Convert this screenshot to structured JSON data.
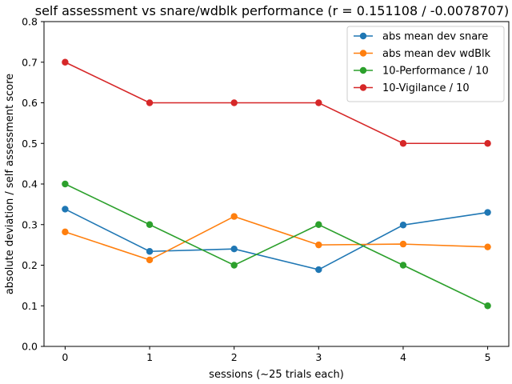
{
  "chart_data": {
    "type": "line",
    "title": "self assessment vs snare/wdblk performance (r = 0.151108 / -0.0078707)",
    "xlabel": "sessions (~25 trials each)",
    "ylabel": "absolute deviation / self assessment score",
    "x": [
      0,
      1,
      2,
      3,
      4,
      5
    ],
    "xticks": [
      "0",
      "1",
      "2",
      "3",
      "4",
      "5"
    ],
    "yticks": [
      "0.0",
      "0.1",
      "0.2",
      "0.3",
      "0.4",
      "0.5",
      "0.6",
      "0.7",
      "0.8"
    ],
    "xlim": [
      -0.25,
      5.25
    ],
    "ylim": [
      0,
      0.8
    ],
    "grid": false,
    "legend_position": "top-right",
    "series": [
      {
        "name": "abs mean dev snare",
        "color": "#1f77b4",
        "values": [
          0.338,
          0.234,
          0.24,
          0.189,
          0.299,
          0.33
        ]
      },
      {
        "name": "abs mean dev wdBlk",
        "color": "#ff7f0e",
        "values": [
          0.282,
          0.213,
          0.32,
          0.25,
          0.252,
          0.245
        ]
      },
      {
        "name": "10-Performance / 10",
        "color": "#2ca02c",
        "values": [
          0.4,
          0.3,
          0.2,
          0.3,
          0.2,
          0.1
        ]
      },
      {
        "name": "10-Vigilance / 10",
        "color": "#d62728",
        "values": [
          0.7,
          0.6,
          0.6,
          0.6,
          0.5,
          0.5
        ]
      }
    ]
  }
}
